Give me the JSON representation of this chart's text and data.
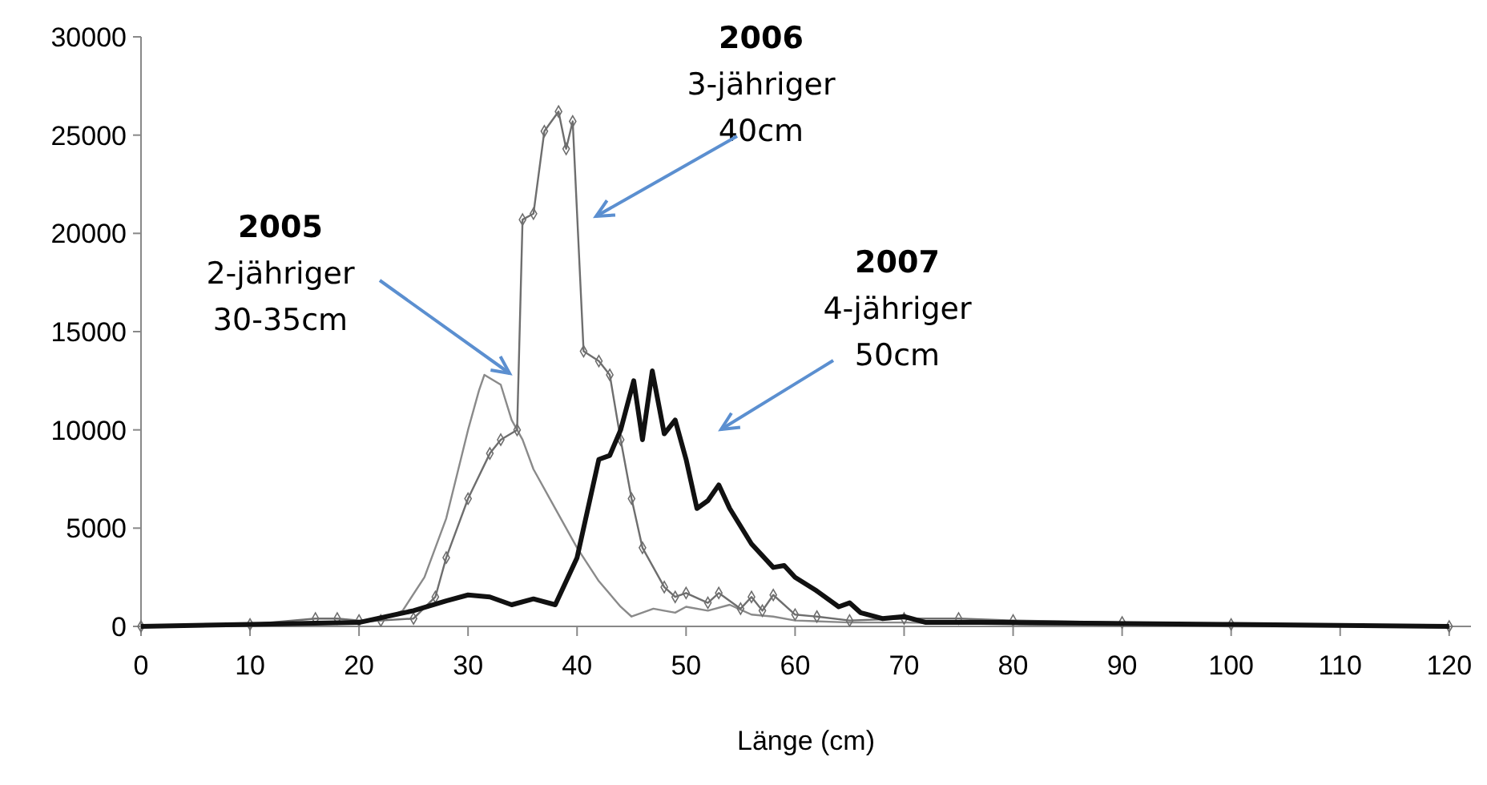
{
  "chart_data": {
    "type": "line",
    "xlabel": "Länge (cm)",
    "xlim": [
      0,
      122
    ],
    "xticks": [
      0,
      10,
      20,
      30,
      40,
      50,
      60,
      70,
      80,
      90,
      100,
      110,
      120
    ],
    "ylim": [
      0,
      30000
    ],
    "yticks": [
      0,
      5000,
      10000,
      15000,
      20000,
      25000,
      30000
    ],
    "grid": false,
    "series": [
      {
        "color": "#8a8a8a",
        "marker": "none",
        "x": [
          0,
          10,
          20,
          22,
          24,
          26,
          28,
          30,
          31,
          31.5,
          33,
          34,
          35,
          36,
          38,
          40,
          42,
          44,
          45,
          47,
          49,
          50,
          52,
          54,
          56,
          58,
          60,
          65,
          70,
          80,
          100,
          120
        ],
        "values": [
          0,
          100,
          200,
          300,
          800,
          2500,
          5500,
          10000,
          12000,
          12800,
          12300,
          10500,
          9500,
          8000,
          6000,
          4000,
          2300,
          1000,
          500,
          900,
          700,
          1000,
          800,
          1100,
          600,
          500,
          300,
          200,
          200,
          100,
          0,
          0
        ]
      },
      {
        "color": "#6e6e6e",
        "marker": "diamond",
        "x": [
          0,
          10,
          16,
          18,
          20,
          22,
          25,
          27,
          28,
          30,
          32,
          33,
          34.5,
          35,
          36,
          37,
          38.3,
          39,
          39.6,
          40.6,
          42,
          43,
          44,
          45,
          46,
          48,
          49,
          50,
          52,
          53,
          55,
          56,
          57,
          58,
          60,
          62,
          65,
          70,
          75,
          80,
          90,
          100,
          120
        ],
        "values": [
          0,
          100,
          400,
          400,
          300,
          300,
          400,
          1500,
          3500,
          6500,
          8800,
          9500,
          10000,
          20700,
          21000,
          25200,
          26200,
          24300,
          25700,
          14000,
          13500,
          12800,
          9500,
          6500,
          4000,
          2000,
          1500,
          1700,
          1200,
          1700,
          900,
          1500,
          800,
          1600,
          600,
          500,
          300,
          400,
          400,
          300,
          200,
          100,
          0
        ]
      },
      {
        "color": "#111111",
        "marker": "none",
        "x": [
          0,
          10,
          20,
          25,
          28,
          30,
          32,
          34,
          36,
          38,
          40,
          42,
          43,
          44,
          45.2,
          46,
          46.9,
          48,
          49,
          50,
          51,
          52,
          53,
          54,
          56,
          58,
          59,
          60,
          62,
          64,
          65,
          66,
          68,
          70,
          72,
          80,
          100,
          120
        ],
        "values": [
          0,
          100,
          200,
          800,
          1300,
          1600,
          1500,
          1100,
          1400,
          1100,
          3500,
          8500,
          8700,
          10000,
          12500,
          9500,
          13000,
          9800,
          10500,
          8500,
          6000,
          6400,
          7200,
          6000,
          4200,
          3000,
          3100,
          2500,
          1800,
          1000,
          1200,
          700,
          400,
          500,
          200,
          200,
          100,
          0
        ]
      }
    ],
    "annotations": [
      "2005\n2-jähriger\n30-35cm",
      "2006\n3-jähriger\n40cm",
      "2007\n4-jähriger\n50cm"
    ]
  }
}
